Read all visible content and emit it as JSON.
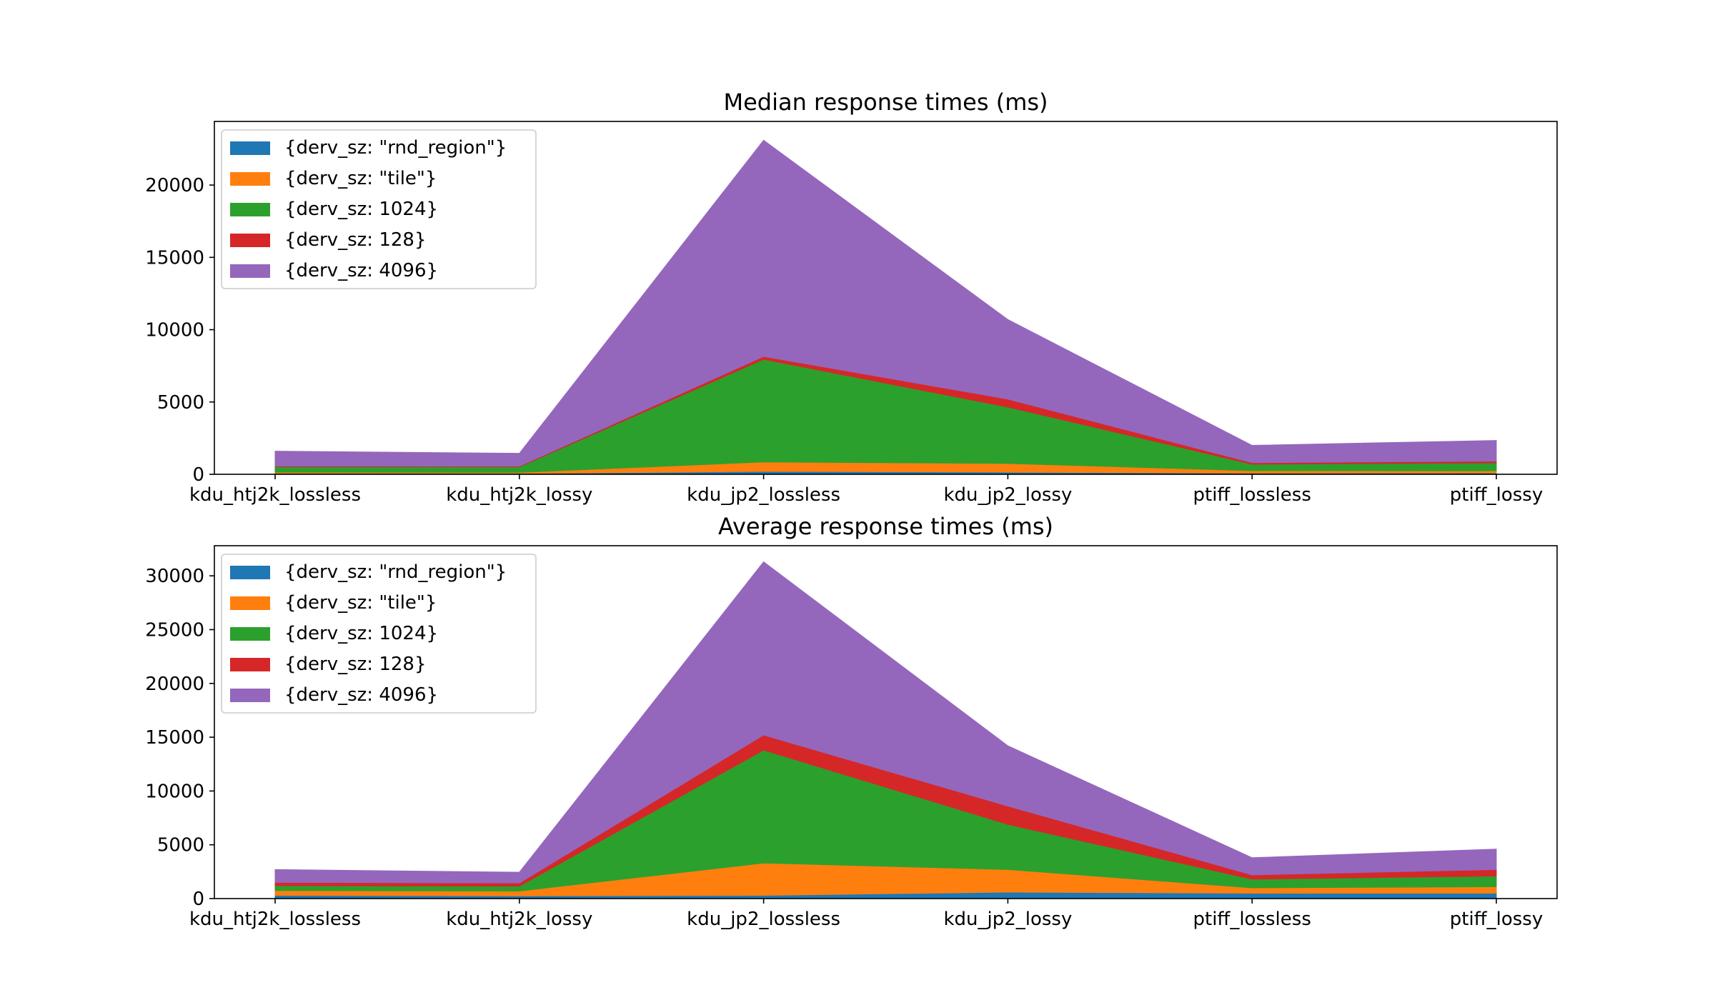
{
  "colors": [
    "#1f77b4",
    "#ff7f0e",
    "#2ca02c",
    "#d62728",
    "#9467bd"
  ],
  "chart_data": [
    {
      "type": "area",
      "stacked": true,
      "title": "Median response times (ms)",
      "xlabel": "",
      "ylabel": "",
      "categories": [
        "kdu_htj2k_lossless",
        "kdu_htj2k_lossy",
        "kdu_jp2_lossless",
        "kdu_jp2_lossy",
        "ptiff_lossless",
        "ptiff_lossy"
      ],
      "ylim": [
        0,
        24400
      ],
      "yticks": [
        0,
        5000,
        10000,
        15000,
        20000
      ],
      "legend_position": "upper-left",
      "series": [
        {
          "name": "{derv_sz: \"rnd_region\"}",
          "values": [
            60,
            60,
            200,
            150,
            80,
            90
          ]
        },
        {
          "name": "{derv_sz: \"tile\"}",
          "values": [
            80,
            70,
            650,
            600,
            170,
            150
          ]
        },
        {
          "name": "{derv_sz: 1024}",
          "values": [
            380,
            380,
            7100,
            3900,
            450,
            550
          ]
        },
        {
          "name": "{derv_sz: 128}",
          "values": [
            50,
            50,
            200,
            550,
            100,
            120
          ]
        },
        {
          "name": "{derv_sz: 4096}",
          "values": [
            1030,
            890,
            14950,
            5500,
            1200,
            1430
          ]
        }
      ]
    },
    {
      "type": "area",
      "stacked": true,
      "title": "Average response times (ms)",
      "xlabel": "",
      "ylabel": "",
      "categories": [
        "kdu_htj2k_lossless",
        "kdu_htj2k_lossy",
        "kdu_jp2_lossless",
        "kdu_jp2_lossy",
        "ptiff_lossless",
        "ptiff_lossy"
      ],
      "ylim": [
        0,
        32800
      ],
      "yticks": [
        0,
        5000,
        10000,
        15000,
        20000,
        25000,
        30000
      ],
      "legend_position": "upper-left",
      "series": [
        {
          "name": "{derv_sz: \"rnd_region\"}",
          "values": [
            300,
            250,
            300,
            600,
            500,
            500
          ]
        },
        {
          "name": "{derv_sz: \"tile\"}",
          "values": [
            450,
            450,
            3000,
            2100,
            500,
            600
          ]
        },
        {
          "name": "{derv_sz: 1024}",
          "values": [
            450,
            450,
            10500,
            4200,
            800,
            1000
          ]
        },
        {
          "name": "{derv_sz: 128}",
          "values": [
            300,
            300,
            1400,
            1700,
            400,
            600
          ]
        },
        {
          "name": "{derv_sz: 4096}",
          "values": [
            1200,
            1000,
            16100,
            5600,
            1600,
            1900
          ]
        }
      ]
    }
  ]
}
